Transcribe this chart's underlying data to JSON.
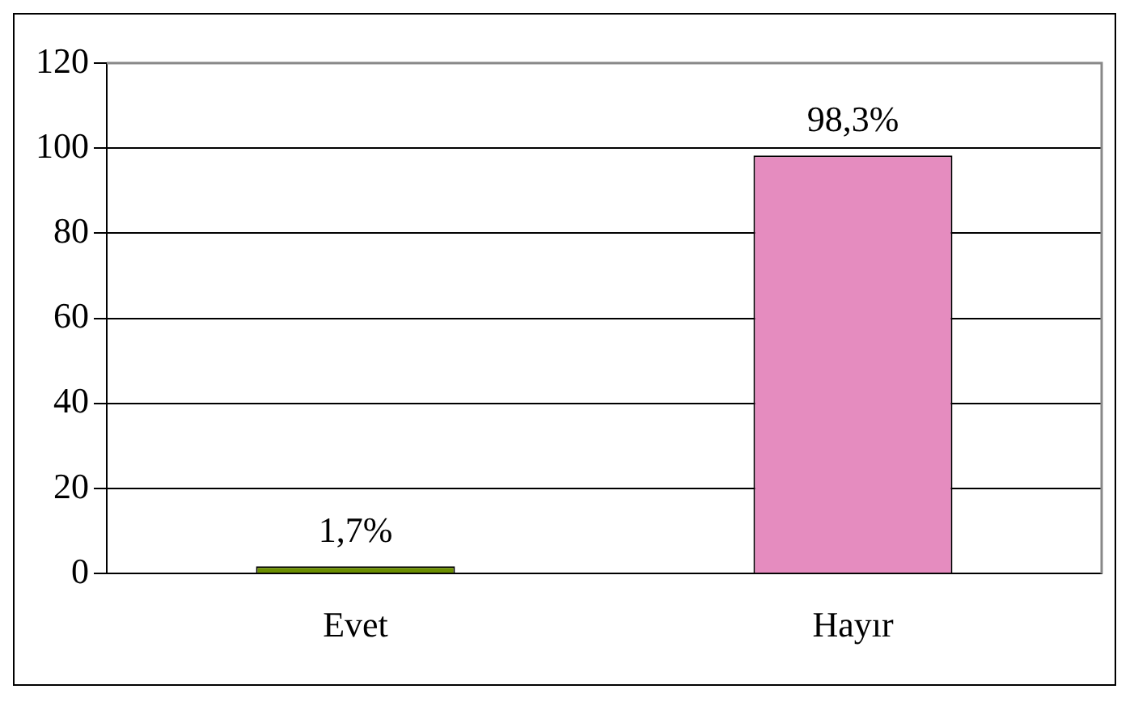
{
  "chart_data": {
    "type": "bar",
    "categories": [
      "Evet",
      "Hayır"
    ],
    "values": [
      1.7,
      98.3
    ],
    "colors": [
      "#6b8e00",
      "#e58cbf"
    ],
    "value_labels": [
      "1,7%",
      "98,3%"
    ],
    "ylim": [
      0,
      120
    ],
    "yticks": [
      0,
      20,
      40,
      60,
      80,
      100,
      120
    ],
    "grid": "y",
    "legend": false
  }
}
